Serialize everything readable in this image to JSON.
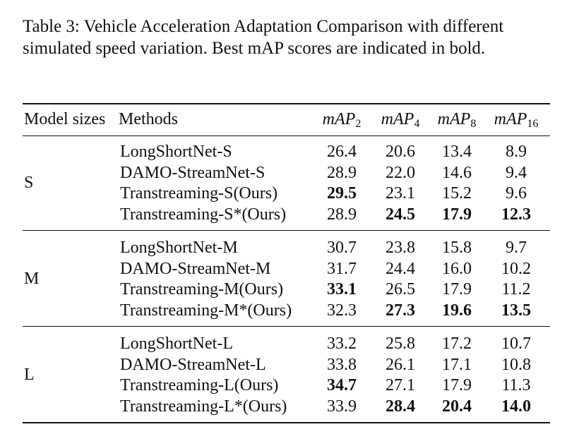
{
  "caption": "Table 3: Vehicle Acceleration Adaptation Comparison with different simulated speed variation. Best mAP scores are indicated in bold.",
  "header": {
    "model_sizes": "Model sizes",
    "methods": "Methods",
    "metric_base": "mAP",
    "metric_subs": [
      "2",
      "4",
      "8",
      "16"
    ]
  },
  "groups": [
    {
      "size": "S",
      "rows": [
        {
          "method": "LongShortNet-S",
          "values": [
            "26.4",
            "20.6",
            "13.4",
            "8.9"
          ],
          "bold": [
            false,
            false,
            false,
            false
          ]
        },
        {
          "method": "DAMO-StreamNet-S",
          "values": [
            "28.9",
            "22.0",
            "14.6",
            "9.4"
          ],
          "bold": [
            false,
            false,
            false,
            false
          ]
        },
        {
          "method": "Transtreaming-S(Ours)",
          "values": [
            "29.5",
            "23.1",
            "15.2",
            "9.6"
          ],
          "bold": [
            true,
            false,
            false,
            false
          ]
        },
        {
          "method": "Transtreaming-S*(Ours)",
          "values": [
            "28.9",
            "24.5",
            "17.9",
            "12.3"
          ],
          "bold": [
            false,
            true,
            true,
            true
          ]
        }
      ]
    },
    {
      "size": "M",
      "rows": [
        {
          "method": "LongShortNet-M",
          "values": [
            "30.7",
            "23.8",
            "15.8",
            "9.7"
          ],
          "bold": [
            false,
            false,
            false,
            false
          ]
        },
        {
          "method": "DAMO-StreamNet-M",
          "values": [
            "31.7",
            "24.4",
            "16.0",
            "10.2"
          ],
          "bold": [
            false,
            false,
            false,
            false
          ]
        },
        {
          "method": "Transtreaming-M(Ours)",
          "values": [
            "33.1",
            "26.5",
            "17.9",
            "11.2"
          ],
          "bold": [
            true,
            false,
            false,
            false
          ]
        },
        {
          "method": "Transtreaming-M*(Ours)",
          "values": [
            "32.3",
            "27.3",
            "19.6",
            "13.5"
          ],
          "bold": [
            false,
            true,
            true,
            true
          ]
        }
      ]
    },
    {
      "size": "L",
      "rows": [
        {
          "method": "LongShortNet-L",
          "values": [
            "33.2",
            "25.8",
            "17.2",
            "10.7"
          ],
          "bold": [
            false,
            false,
            false,
            false
          ]
        },
        {
          "method": "DAMO-StreamNet-L",
          "values": [
            "33.8",
            "26.1",
            "17.1",
            "10.8"
          ],
          "bold": [
            false,
            false,
            false,
            false
          ]
        },
        {
          "method": "Transtreaming-L(Ours)",
          "values": [
            "34.7",
            "27.1",
            "17.9",
            "11.3"
          ],
          "bold": [
            true,
            false,
            false,
            false
          ]
        },
        {
          "method": "Transtreaming-L*(Ours)",
          "values": [
            "33.9",
            "28.4",
            "20.4",
            "14.0"
          ],
          "bold": [
            false,
            true,
            true,
            true
          ]
        }
      ]
    }
  ]
}
